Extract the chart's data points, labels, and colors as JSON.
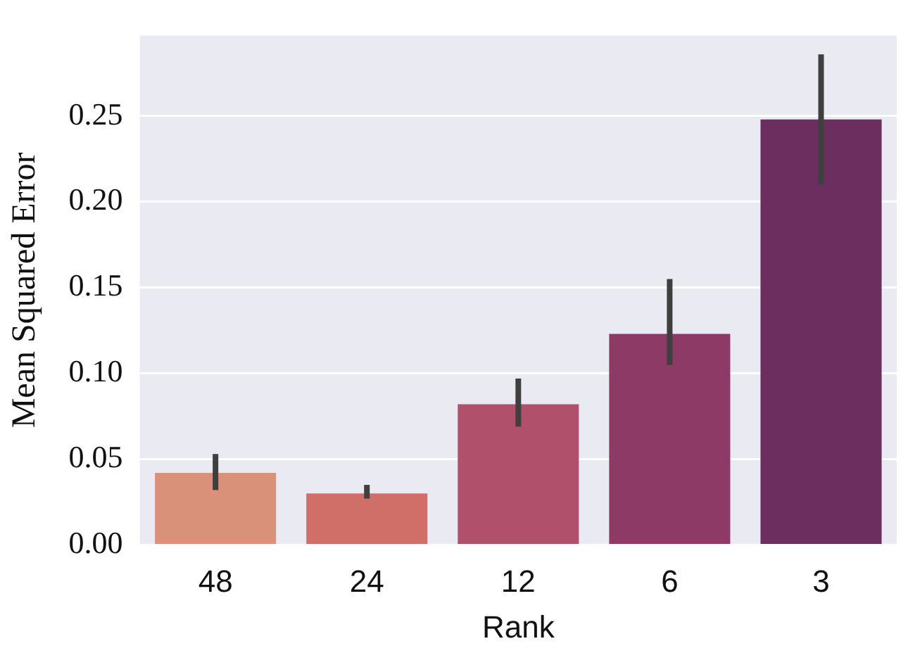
{
  "chart_data": {
    "type": "bar",
    "xlabel": "Rank",
    "ylabel": "Mean Squared Error",
    "categories": [
      "48",
      "24",
      "12",
      "6",
      "3"
    ],
    "values": [
      0.042,
      0.03,
      0.082,
      0.123,
      0.248
    ],
    "colors": [
      "#d9917a",
      "#d06e68",
      "#b0506b",
      "#8d3b66",
      "#6b2e5f"
    ],
    "errors": [
      [
        0.032,
        0.053
      ],
      [
        0.027,
        0.035
      ],
      [
        0.069,
        0.097
      ],
      [
        0.105,
        0.155
      ],
      [
        0.21,
        0.286
      ]
    ],
    "ylim": [
      0,
      0.297
    ],
    "yticks": [
      {
        "value": 0,
        "label": "0.00"
      },
      {
        "value": 0.05,
        "label": "0.05"
      },
      {
        "value": 0.1,
        "label": "0.10"
      },
      {
        "value": 0.15,
        "label": "0.15"
      },
      {
        "value": 0.2,
        "label": "0.20"
      },
      {
        "value": 0.25,
        "label": "0.25"
      }
    ],
    "grid": "y",
    "legend": false
  }
}
